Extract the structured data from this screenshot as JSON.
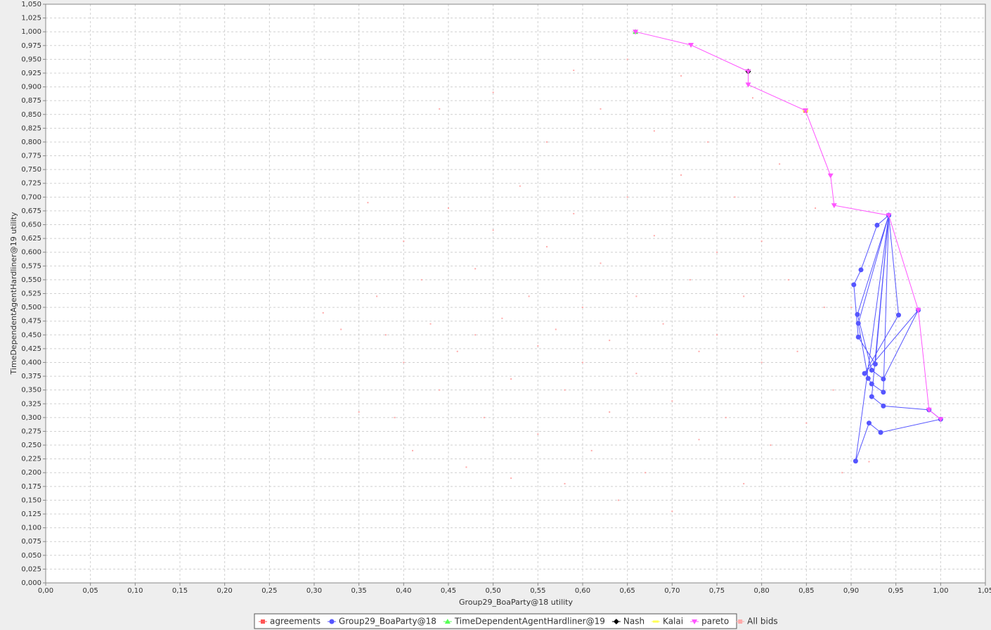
{
  "chart_data": {
    "type": "scatter",
    "xlabel": "Group29_BoaParty@18 utility",
    "ylabel": "TimeDependentAgentHardliner@19 utility",
    "xlim": [
      0,
      1.05
    ],
    "ylim": [
      0,
      1.05
    ],
    "grid": true,
    "legend": "bottom",
    "xticks": [
      {
        "value": 0,
        "label": "0,00"
      },
      {
        "value": 0.05,
        "label": "0,05"
      },
      {
        "value": 0.1,
        "label": "0,10"
      },
      {
        "value": 0.15,
        "label": "0,15"
      },
      {
        "value": 0.2,
        "label": "0,20"
      },
      {
        "value": 0.25,
        "label": "0,25"
      },
      {
        "value": 0.3,
        "label": "0,30"
      },
      {
        "value": 0.35,
        "label": "0,35"
      },
      {
        "value": 0.4,
        "label": "0,40"
      },
      {
        "value": 0.45,
        "label": "0,45"
      },
      {
        "value": 0.5,
        "label": "0,50"
      },
      {
        "value": 0.55,
        "label": "0,55"
      },
      {
        "value": 0.6,
        "label": "0,60"
      },
      {
        "value": 0.65,
        "label": "0,65"
      },
      {
        "value": 0.7,
        "label": "0,70"
      },
      {
        "value": 0.75,
        "label": "0,75"
      },
      {
        "value": 0.8,
        "label": "0,80"
      },
      {
        "value": 0.85,
        "label": "0,85"
      },
      {
        "value": 0.9,
        "label": "0,90"
      },
      {
        "value": 0.95,
        "label": "0,95"
      },
      {
        "value": 1,
        "label": "1,00"
      },
      {
        "value": 1.05,
        "label": "1,05"
      }
    ],
    "yticks": [
      {
        "value": 0,
        "label": "0,000"
      },
      {
        "value": 0.025,
        "label": "0,025"
      },
      {
        "value": 0.05,
        "label": "0,050"
      },
      {
        "value": 0.075,
        "label": "0,075"
      },
      {
        "value": 0.1,
        "label": "0,100"
      },
      {
        "value": 0.125,
        "label": "0,125"
      },
      {
        "value": 0.15,
        "label": "0,150"
      },
      {
        "value": 0.175,
        "label": "0,175"
      },
      {
        "value": 0.2,
        "label": "0,200"
      },
      {
        "value": 0.225,
        "label": "0,225"
      },
      {
        "value": 0.25,
        "label": "0,250"
      },
      {
        "value": 0.275,
        "label": "0,275"
      },
      {
        "value": 0.3,
        "label": "0,300"
      },
      {
        "value": 0.325,
        "label": "0,325"
      },
      {
        "value": 0.35,
        "label": "0,350"
      },
      {
        "value": 0.375,
        "label": "0,375"
      },
      {
        "value": 0.4,
        "label": "0,400"
      },
      {
        "value": 0.425,
        "label": "0,425"
      },
      {
        "value": 0.45,
        "label": "0,450"
      },
      {
        "value": 0.475,
        "label": "0,475"
      },
      {
        "value": 0.5,
        "label": "0,500"
      },
      {
        "value": 0.525,
        "label": "0,525"
      },
      {
        "value": 0.55,
        "label": "0,550"
      },
      {
        "value": 0.575,
        "label": "0,575"
      },
      {
        "value": 0.6,
        "label": "0,600"
      },
      {
        "value": 0.625,
        "label": "0,625"
      },
      {
        "value": 0.65,
        "label": "0,650"
      },
      {
        "value": 0.675,
        "label": "0,675"
      },
      {
        "value": 0.7,
        "label": "0,700"
      },
      {
        "value": 0.725,
        "label": "0,725"
      },
      {
        "value": 0.75,
        "label": "0,750"
      },
      {
        "value": 0.775,
        "label": "0,775"
      },
      {
        "value": 0.8,
        "label": "0,800"
      },
      {
        "value": 0.825,
        "label": "0,825"
      },
      {
        "value": 0.85,
        "label": "0,850"
      },
      {
        "value": 0.875,
        "label": "0,875"
      },
      {
        "value": 0.9,
        "label": "0,900"
      },
      {
        "value": 0.925,
        "label": "0,925"
      },
      {
        "value": 0.95,
        "label": "0,950"
      },
      {
        "value": 0.975,
        "label": "0,975"
      },
      {
        "value": 1,
        "label": "1,000"
      },
      {
        "value": 1.025,
        "label": "1,025"
      },
      {
        "value": 1.05,
        "label": "1,050"
      }
    ],
    "series": [
      {
        "name": "agreements",
        "color": "#ff5555",
        "marker": "square",
        "line": false,
        "x": [
          0.849
        ],
        "y": [
          0.857
        ]
      },
      {
        "name": "Group29_BoaParty@18",
        "color": "#5555ff",
        "marker": "circle",
        "line": true,
        "x": [
          0.942,
          0.929,
          0.911,
          0.903,
          0.908,
          0.927,
          0.942,
          0.907,
          0.923,
          0.936,
          0.975,
          0.915,
          0.953,
          0.942,
          0.908,
          0.919,
          0.923,
          0.936,
          0.942,
          0.923,
          0.936,
          0.987,
          1.0,
          0.933,
          0.92,
          0.905,
          0.942
        ],
        "y": [
          0.667,
          0.649,
          0.568,
          0.541,
          0.446,
          0.397,
          0.667,
          0.487,
          0.386,
          0.37,
          0.495,
          0.38,
          0.486,
          0.667,
          0.471,
          0.371,
          0.361,
          0.346,
          0.667,
          0.338,
          0.321,
          0.314,
          0.297,
          0.273,
          0.29,
          0.221,
          0.667
        ]
      },
      {
        "name": "TimeDependentAgentHardliner@19",
        "color": "#55ff55",
        "marker": "triangle-up",
        "line": false,
        "x": [
          0.659
        ],
        "y": [
          1.0
        ]
      },
      {
        "name": "Nash",
        "color": "#000000",
        "marker": "diamond",
        "line": false,
        "x": [
          0.785
        ],
        "y": [
          0.928
        ]
      },
      {
        "name": "Kalai",
        "color": "#ffff55",
        "marker": "bar",
        "line": false,
        "x": [
          0.849
        ],
        "y": [
          0.857
        ]
      },
      {
        "name": "pareto",
        "color": "#ff55ff",
        "marker": "triangle-down",
        "line": true,
        "x": [
          0.659,
          0.721,
          0.785,
          0.785,
          0.849,
          0.877,
          0.881,
          0.942,
          0.975,
          0.987,
          1.0
        ],
        "y": [
          1.0,
          0.976,
          0.928,
          0.904,
          0.857,
          0.739,
          0.685,
          0.667,
          0.495,
          0.314,
          0.297
        ]
      },
      {
        "name": "All bids",
        "color": "#ffaaaa",
        "marker": "dot",
        "line": false,
        "x": [
          0.31,
          0.33,
          0.35,
          0.36,
          0.37,
          0.38,
          0.39,
          0.4,
          0.4,
          0.41,
          0.42,
          0.43,
          0.44,
          0.44,
          0.45,
          0.46,
          0.47,
          0.48,
          0.48,
          0.49,
          0.5,
          0.5,
          0.51,
          0.52,
          0.52,
          0.53,
          0.54,
          0.55,
          0.55,
          0.56,
          0.56,
          0.57,
          0.58,
          0.58,
          0.59,
          0.59,
          0.6,
          0.6,
          0.61,
          0.62,
          0.62,
          0.63,
          0.63,
          0.64,
          0.65,
          0.65,
          0.66,
          0.66,
          0.67,
          0.68,
          0.68,
          0.69,
          0.7,
          0.7,
          0.71,
          0.71,
          0.72,
          0.73,
          0.73,
          0.74,
          0.75,
          0.75,
          0.76,
          0.77,
          0.78,
          0.78,
          0.79,
          0.8,
          0.8,
          0.81,
          0.82,
          0.83,
          0.84,
          0.85,
          0.86,
          0.87,
          0.88,
          0.89,
          0.9,
          0.92
        ],
        "y": [
          0.49,
          0.46,
          0.31,
          0.69,
          0.52,
          0.45,
          0.3,
          0.62,
          0.4,
          0.24,
          0.55,
          0.47,
          0.86,
          0.35,
          0.68,
          0.42,
          0.21,
          0.57,
          0.45,
          0.3,
          0.89,
          0.64,
          0.48,
          0.37,
          0.19,
          0.72,
          0.52,
          0.43,
          0.27,
          0.8,
          0.61,
          0.46,
          0.35,
          0.18,
          0.93,
          0.67,
          0.5,
          0.4,
          0.24,
          0.86,
          0.58,
          0.44,
          0.31,
          0.15,
          0.95,
          0.7,
          0.52,
          0.38,
          0.2,
          0.82,
          0.63,
          0.47,
          0.33,
          0.13,
          0.92,
          0.74,
          0.55,
          0.42,
          0.26,
          0.8,
          0.6,
          0.45,
          0.3,
          0.7,
          0.52,
          0.18,
          0.88,
          0.62,
          0.4,
          0.25,
          0.76,
          0.55,
          0.42,
          0.29,
          0.68,
          0.5,
          0.35,
          0.2,
          0.5,
          0.22
        ]
      }
    ]
  }
}
